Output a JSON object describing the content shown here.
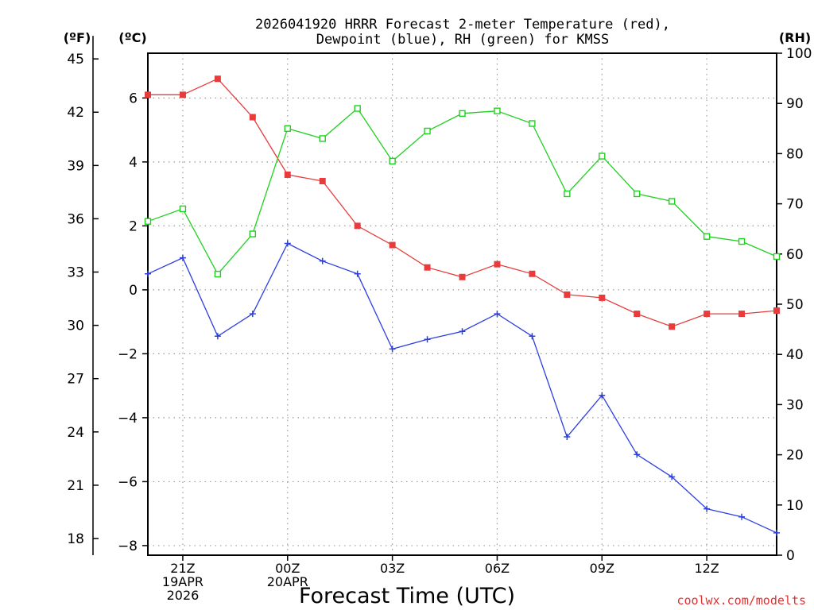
{
  "chart_data": {
    "type": "line",
    "title_line1": "2026041920 HRRR Forecast 2-meter Temperature (red),",
    "title_line2": "Dewpoint (blue), RH (green) for KMSS",
    "xlabel": "Forecast Time (UTC)",
    "credit": "coolwx.com/modelts",
    "units": {
      "fahrenheit": "(ºF)",
      "celsius": "(ºC)",
      "rh": "(RH)"
    },
    "x_hours": [
      20,
      21,
      22,
      23,
      24,
      25,
      26,
      27,
      28,
      29,
      30,
      31,
      32,
      33,
      34,
      35,
      36,
      37,
      38
    ],
    "x_range": [
      20,
      38
    ],
    "x_ticks": [
      {
        "hour": 21,
        "lines": [
          "21Z",
          "19APR",
          "2026"
        ]
      },
      {
        "hour": 24,
        "lines": [
          "00Z",
          "20APR"
        ]
      },
      {
        "hour": 27,
        "lines": [
          "03Z"
        ]
      },
      {
        "hour": 30,
        "lines": [
          "06Z"
        ]
      },
      {
        "hour": 33,
        "lines": [
          "09Z"
        ]
      },
      {
        "hour": 36,
        "lines": [
          "12Z"
        ]
      }
    ],
    "celsius_axis": {
      "range": [
        -8.3,
        7.4
      ],
      "ticks": [
        "6",
        "4",
        "2",
        "0",
        "−2",
        "−4",
        "−6",
        "−8"
      ],
      "tick_values": [
        6,
        4,
        2,
        0,
        -2,
        -4,
        -6,
        -8
      ]
    },
    "fahrenheit_axis": {
      "ticks": [
        "45",
        "42",
        "39",
        "36",
        "33",
        "30",
        "27",
        "24",
        "21",
        "18"
      ],
      "tick_values": [
        45,
        42,
        39,
        36,
        33,
        30,
        27,
        24,
        21,
        18
      ]
    },
    "rh_axis": {
      "range": [
        0,
        100
      ],
      "ticks": [
        "100",
        "90",
        "80",
        "70",
        "60",
        "50",
        "40",
        "30",
        "20",
        "10",
        "0"
      ],
      "tick_values": [
        100,
        90,
        80,
        70,
        60,
        50,
        40,
        30,
        20,
        10,
        0
      ]
    },
    "series": [
      {
        "name": "2-meter Temperature",
        "axis": "celsius",
        "color": "#e83c3c",
        "marker": "filled-square",
        "values": [
          6.1,
          6.1,
          6.6,
          5.4,
          3.6,
          3.4,
          2.0,
          1.4,
          0.7,
          0.4,
          0.8,
          0.5,
          -0.15,
          -0.25,
          -0.75,
          -1.15,
          -0.75,
          -0.75,
          -0.65
        ]
      },
      {
        "name": "Dewpoint",
        "axis": "celsius",
        "color": "#2b3fe0",
        "marker": "plus",
        "values": [
          0.5,
          1.0,
          -1.45,
          -0.75,
          1.45,
          0.9,
          0.5,
          -1.85,
          -1.55,
          -1.3,
          -0.75,
          -1.45,
          -4.6,
          -3.3,
          -5.15,
          -5.85,
          -6.85,
          -7.1,
          -7.6
        ]
      },
      {
        "name": "RH",
        "axis": "rh",
        "color": "#1fd11f",
        "marker": "open-square",
        "values": [
          66.5,
          69,
          56,
          64,
          85,
          83,
          89,
          78.5,
          84.5,
          88,
          88.5,
          86,
          72,
          79.5,
          72,
          70.5,
          63.5,
          62.5,
          59.5
        ]
      }
    ]
  }
}
